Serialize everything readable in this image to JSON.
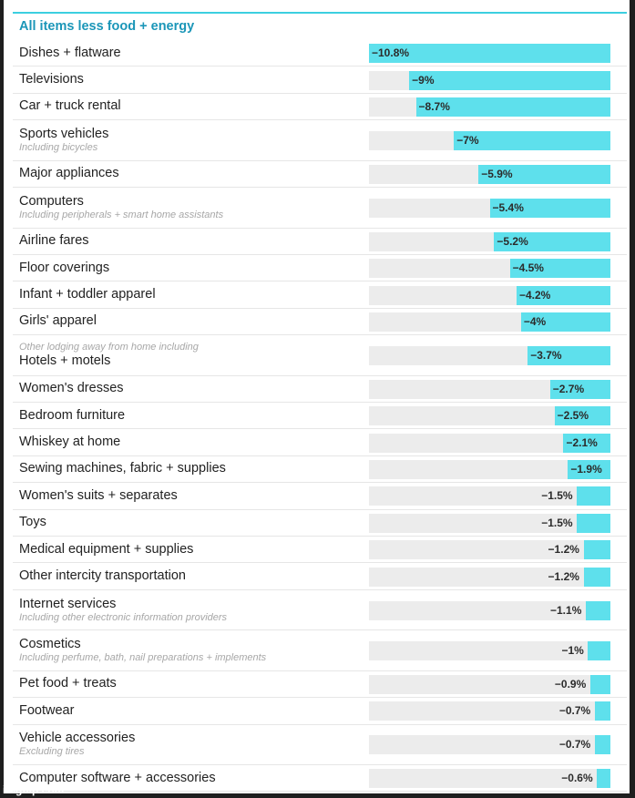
{
  "chart_data": {
    "type": "bar",
    "orientation": "horizontal",
    "title": "All items less food + energy",
    "xlim": [
      -10.8,
      0
    ],
    "categories": [
      {
        "label": "Dishes + flatware",
        "value": -10.8,
        "value_text": "−10.8%"
      },
      {
        "label": "Televisions",
        "value": -9,
        "value_text": "−9%"
      },
      {
        "label": "Car + truck rental",
        "value": -8.7,
        "value_text": "−8.7%"
      },
      {
        "label": "Sports vehicles",
        "note": "Including bicycles",
        "value": -7,
        "value_text": "−7%"
      },
      {
        "label": "Major appliances",
        "value": -5.9,
        "value_text": "−5.9%"
      },
      {
        "label": "Computers",
        "note": "Including peripherals + smart home assistants",
        "value": -5.4,
        "value_text": "−5.4%"
      },
      {
        "label": "Airline fares",
        "value": -5.2,
        "value_text": "−5.2%"
      },
      {
        "label": "Floor coverings",
        "value": -4.5,
        "value_text": "−4.5%"
      },
      {
        "label": "Infant + toddler apparel",
        "value": -4.2,
        "value_text": "−4.2%"
      },
      {
        "label": "Girls' apparel",
        "value": -4,
        "value_text": "−4%"
      },
      {
        "label": "Hotels + motels",
        "note": "Other lodging away from home including",
        "note_above": true,
        "value": -3.7,
        "value_text": "−3.7%"
      },
      {
        "label": "Women's dresses",
        "value": -2.7,
        "value_text": "−2.7%"
      },
      {
        "label": "Bedroom furniture",
        "value": -2.5,
        "value_text": "−2.5%"
      },
      {
        "label": "Whiskey at home",
        "value": -2.1,
        "value_text": "−2.1%"
      },
      {
        "label": "Sewing machines, fabric + supplies",
        "value": -1.9,
        "value_text": "−1.9%"
      },
      {
        "label": "Women's suits + separates",
        "value": -1.5,
        "value_text": "−1.5%"
      },
      {
        "label": "Toys",
        "value": -1.5,
        "value_text": "−1.5%"
      },
      {
        "label": "Medical equipment + supplies",
        "value": -1.2,
        "value_text": "−1.2%"
      },
      {
        "label": "Other intercity transportation",
        "value": -1.2,
        "value_text": "−1.2%"
      },
      {
        "label": "Internet services",
        "note": "Including other electronic information providers",
        "value": -1.1,
        "value_text": "−1.1%"
      },
      {
        "label": "Cosmetics",
        "note": "Including perfume, bath, nail preparations + implements",
        "value": -1,
        "value_text": "−1%"
      },
      {
        "label": "Pet food + treats",
        "value": -0.9,
        "value_text": "−0.9%"
      },
      {
        "label": "Footwear",
        "value": -0.7,
        "value_text": "−0.7%"
      },
      {
        "label": "Vehicle accessories",
        "note": "Excluding tires",
        "value": -0.7,
        "value_text": "−0.7%"
      },
      {
        "label": "Computer software + accessories",
        "value": -0.6,
        "value_text": "−0.6%"
      }
    ]
  },
  "watermark": "imgflip.com",
  "colors": {
    "bar": "#5ee0ec",
    "track": "#ececec",
    "title": "#1b96b8",
    "rule": "#3ccfe0"
  }
}
